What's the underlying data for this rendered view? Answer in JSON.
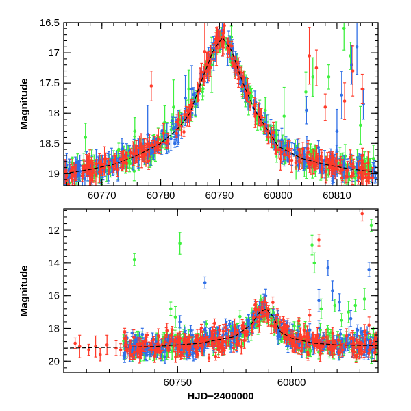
{
  "chart_data": [
    {
      "type": "scatter",
      "panel": "top",
      "xlabel": "",
      "ylabel": "Magnitude",
      "xlim": [
        60763.5,
        60817
      ],
      "ylim": [
        19.2,
        16.5
      ],
      "y_inverted": true,
      "x_ticks": [
        60770,
        60780,
        60790,
        60800,
        60810
      ],
      "x_tick_labels": [
        "60770",
        "60780",
        "60790",
        "60800",
        "60810"
      ],
      "y_ticks": [
        16.5,
        17,
        17.5,
        18,
        18.5,
        19
      ],
      "y_tick_labels": [
        "16.5",
        "17",
        "17.5",
        "18",
        "18.5",
        "19"
      ],
      "grid": false,
      "legend": "none",
      "model_curve": {
        "color": "#000000",
        "x": [
          60763.5,
          60768,
          60772,
          60776,
          60780,
          60783,
          60785,
          60787,
          60789,
          60790.5,
          60792,
          60794,
          60796,
          60798,
          60800,
          60804,
          60808,
          60812,
          60817
        ],
        "y": [
          19.0,
          18.93,
          18.85,
          18.7,
          18.5,
          18.25,
          18.0,
          17.45,
          16.95,
          16.75,
          16.95,
          17.5,
          17.95,
          18.25,
          18.55,
          18.75,
          18.85,
          18.92,
          18.98
        ]
      },
      "series": [
        {
          "name": "",
          "color": "#ff3b2a",
          "outliers": [
            [
              60778.4,
              17.55
            ],
            [
              60787.5,
              16.98
            ],
            [
              60789.5,
              16.9
            ],
            [
              60805.3,
              17.05
            ],
            [
              60806.5,
              17.25
            ],
            [
              60814.3,
              17.6
            ],
            [
              60812.7,
              17.3
            ],
            [
              60811.3,
              17.8
            ],
            [
              60808,
              17.9
            ]
          ]
        },
        {
          "name": "",
          "color": "#2f6fe6",
          "outliers": [
            [
              60777.8,
              18.35
            ],
            [
              60784.2,
              17.75
            ],
            [
              60785.3,
              17.6
            ],
            [
              60804.8,
              17.95
            ],
            [
              60810.8,
              17.7
            ],
            [
              60812.5,
              17.2
            ],
            [
              60813.4,
              16.9
            ],
            [
              60814.5,
              17.85
            ],
            [
              60810.0,
              18.3
            ]
          ]
        },
        {
          "name": "",
          "color": "#3ef03e",
          "outliers": [
            [
              60767.2,
              18.4
            ],
            [
              60775.6,
              18.3
            ],
            [
              60780.7,
              18.15
            ],
            [
              60782.2,
              17.9
            ],
            [
              60784.8,
              17.6
            ],
            [
              60788.7,
              17.2
            ],
            [
              60797.8,
              17.95
            ],
            [
              60801,
              18.05
            ],
            [
              60804.7,
              17.65
            ],
            [
              60805.9,
              17.4
            ],
            [
              60808.6,
              17.4
            ],
            [
              60811.2,
              16.6
            ],
            [
              60812.3,
              17.05
            ],
            [
              60814.0,
              18.2
            ],
            [
              60816.2,
              18.75
            ]
          ]
        }
      ]
    },
    {
      "type": "scatter",
      "panel": "bottom",
      "xlabel": "HJD−2400000",
      "ylabel": "Magnitude",
      "xlim": [
        60700,
        60838
      ],
      "ylim": [
        20.7,
        10.7
      ],
      "y_inverted": true,
      "x_ticks": [
        60750,
        60800
      ],
      "x_tick_labels": [
        "60750",
        "60800"
      ],
      "y_ticks": [
        12,
        14,
        16,
        18,
        20
      ],
      "y_tick_labels": [
        "12",
        "14",
        "16",
        "18",
        "20"
      ],
      "grid": false,
      "legend": "none",
      "model_curve": {
        "color": "#000000",
        "x": [
          60700,
          60740,
          60760,
          60775,
          60782,
          60786,
          60789,
          60792,
          60795,
          60800,
          60810,
          60820,
          60838
        ],
        "y": [
          19.2,
          19.1,
          18.9,
          18.5,
          17.8,
          17.0,
          16.8,
          17.3,
          18.2,
          18.6,
          18.9,
          19.0,
          19.05
        ]
      },
      "series": [
        {
          "name": "",
          "color": "#ff3b2a",
          "outliers": [
            [
              60705,
              18.9
            ],
            [
              60707,
              19.1
            ],
            [
              60711,
              19.3
            ],
            [
              60714,
              19.1
            ],
            [
              60716,
              19.6
            ],
            [
              60719,
              19.0
            ],
            [
              60723,
              19.2
            ],
            [
              60725,
              19.3
            ],
            [
              60745,
              18.4
            ],
            [
              60760,
              18.6
            ],
            [
              60775,
              17.9
            ],
            [
              60808,
              17.2
            ],
            [
              60812,
              12.6
            ],
            [
              60826,
              18.6
            ],
            [
              60831,
              11.0
            ],
            [
              60834,
              17.8
            ]
          ]
        },
        {
          "name": "",
          "color": "#2f6fe6",
          "outliers": [
            [
              60751,
              17.6
            ],
            [
              60762,
              15.2
            ],
            [
              60812,
              16.3
            ],
            [
              60816,
              14.3
            ],
            [
              60818,
              15.7
            ],
            [
              60821,
              16.4
            ],
            [
              60826,
              17.4
            ],
            [
              60829,
              18.1
            ],
            [
              60834,
              14.4
            ]
          ]
        },
        {
          "name": "",
          "color": "#3ef03e",
          "outliers": [
            [
              60731,
              13.8
            ],
            [
              60751,
              12.8
            ],
            [
              60747,
              16.8
            ],
            [
              60749,
              17.3
            ],
            [
              60753,
              18.4
            ],
            [
              60762,
              18.2
            ],
            [
              60806,
              17.9
            ],
            [
              60809,
              12.9
            ],
            [
              60810,
              14.0
            ],
            [
              60813,
              16.8
            ],
            [
              60819,
              16.6
            ],
            [
              60822,
              17.5
            ],
            [
              60825,
              17.0
            ],
            [
              60828,
              16.6
            ],
            [
              60832,
              16.2
            ],
            [
              60835,
              11.7
            ],
            [
              60836,
              18.4
            ]
          ]
        }
      ]
    }
  ]
}
